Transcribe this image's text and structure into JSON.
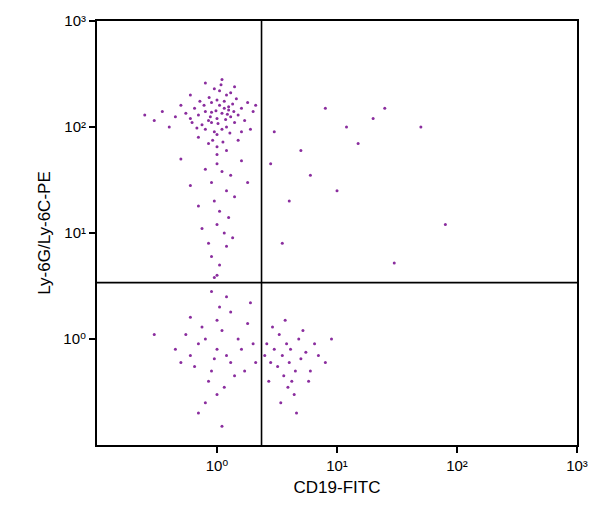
{
  "chart_data": {
    "type": "scatter",
    "x_label": "CD19-FITC",
    "y_label": "Ly-6G/Ly-6C-PE",
    "log": true,
    "grid": false,
    "color": "#8a2d9e",
    "marker": "dot",
    "xlim": [
      0.1,
      1000
    ],
    "ylim": [
      0.1,
      1000
    ],
    "xticks": [
      {
        "value": 1,
        "label": "10⁰"
      },
      {
        "value": 10,
        "label": "10¹"
      },
      {
        "value": 100,
        "label": "10²"
      },
      {
        "value": 1000,
        "label": "10³"
      }
    ],
    "yticks": [
      {
        "value": 1,
        "label": "10⁰"
      },
      {
        "value": 10,
        "label": "10¹"
      },
      {
        "value": 100,
        "label": "10²"
      },
      {
        "value": 1000,
        "label": "10³"
      }
    ],
    "gates": {
      "x": 2.35,
      "y": 3.4
    },
    "x": [
      1.0,
      1.1,
      0.9,
      1.2,
      0.8,
      1.05,
      1.3,
      0.95,
      1.15,
      0.85,
      1.0,
      1.25,
      0.7,
      1.4,
      0.9,
      1.1,
      1.2,
      0.75,
      1.35,
      1.0,
      0.65,
      1.5,
      1.05,
      0.88,
      1.18,
      0.98,
      1.28,
      0.72,
      1.6,
      0.6,
      1.08,
      0.92,
      1.45,
      0.8,
      1.22,
      1.02,
      0.68,
      1.38,
      0.86,
      1.12,
      0.55,
      1.7,
      0.95,
      1.3,
      0.78,
      1.0,
      1.15,
      0.9,
      1.25,
      0.62,
      0.45,
      1.8,
      0.5,
      2.0,
      0.4,
      1.9,
      0.35,
      0.3,
      2.1,
      0.25,
      1.1,
      0.8,
      1.4,
      0.6,
      1.6,
      0.7,
      1.0,
      1.2,
      0.85,
      1.5,
      1.0,
      1.1,
      0.9,
      1.2,
      0.95,
      1.05,
      0.8,
      1.3,
      1.0,
      1.15,
      0.85,
      1.25,
      0.9,
      1.05,
      1.4,
      0.7,
      1.0,
      1.2,
      0.75,
      1.35,
      0.6,
      1.6,
      0.5,
      1.8,
      0.95,
      1.0,
      0.8,
      1.2,
      0.9,
      1.1,
      0.7,
      1.3,
      1.0,
      0.6,
      1.5,
      0.85,
      1.05,
      0.75,
      1.4,
      0.95,
      1.2,
      0.65,
      1.6,
      0.55,
      1.8,
      1.0,
      0.8,
      1.15,
      0.9,
      1.7,
      0.5,
      2.0,
      1.3,
      0.7,
      1.1,
      0.45,
      0.3,
      1.9,
      2.1,
      0.6,
      4.0,
      3.5,
      4.5,
      3.0,
      5.0,
      3.8,
      4.2,
      3.2,
      5.5,
      2.8,
      4.8,
      3.6,
      6.0,
      2.6,
      4.4,
      3.3,
      7.0,
      3.9,
      5.2,
      2.7,
      4.1,
      3.4,
      6.5,
      8.0,
      2.9,
      5.8,
      4.6,
      3.7,
      9.0,
      2.5,
      3.0,
      5.0,
      8.0,
      12,
      4.0,
      20,
      3.5,
      6.0,
      15,
      30,
      80,
      10,
      25,
      2.8,
      50
    ],
    "values": [
      120,
      135,
      110,
      100,
      140,
      160,
      125,
      90,
      150,
      115,
      180,
      145,
      130,
      110,
      170,
      95,
      200,
      105,
      165,
      85,
      150,
      130,
      220,
      125,
      118,
      142,
      88,
      175,
      150,
      120,
      250,
      75,
      185,
      95,
      132,
      108,
      98,
      140,
      190,
      72,
      135,
      115,
      230,
      210,
      160,
      65,
      175,
      138,
      155,
      110,
      125,
      170,
      160,
      140,
      100,
      95,
      140,
      115,
      160,
      130,
      280,
      260,
      240,
      200,
      90,
      80,
      55,
      60,
      70,
      75,
      45,
      38,
      30,
      25,
      20,
      16,
      40,
      35,
      12,
      10,
      8,
      14,
      6,
      5,
      22,
      18,
      4,
      7.5,
      11,
      9,
      28,
      48,
      50,
      30,
      3.8,
      0.8,
      1.0,
      0.7,
      0.5,
      1.2,
      0.9,
      0.6,
      1.5,
      0.7,
      1.0,
      0.4,
      2.0,
      1.3,
      0.45,
      0.65,
      2.5,
      0.55,
      0.8,
      1.1,
      1.4,
      0.3,
      0.25,
      0.35,
      2.8,
      0.5,
      0.6,
      0.9,
      1.8,
      0.2,
      0.15,
      0.8,
      1.1,
      2.2,
      0.6,
      1.6,
      0.6,
      0.7,
      0.5,
      0.8,
      0.65,
      0.9,
      0.4,
      0.55,
      0.75,
      0.6,
      1.0,
      0.45,
      0.5,
      0.9,
      0.3,
      1.1,
      0.7,
      0.35,
      1.2,
      0.4,
      0.8,
      0.25,
      0.9,
      0.6,
      1.3,
      0.4,
      0.2,
      1.5,
      1.0,
      0.7,
      90,
      60,
      150,
      100,
      20,
      120,
      8,
      35,
      70,
      5.2,
      12,
      25,
      150,
      45,
      100
    ]
  }
}
